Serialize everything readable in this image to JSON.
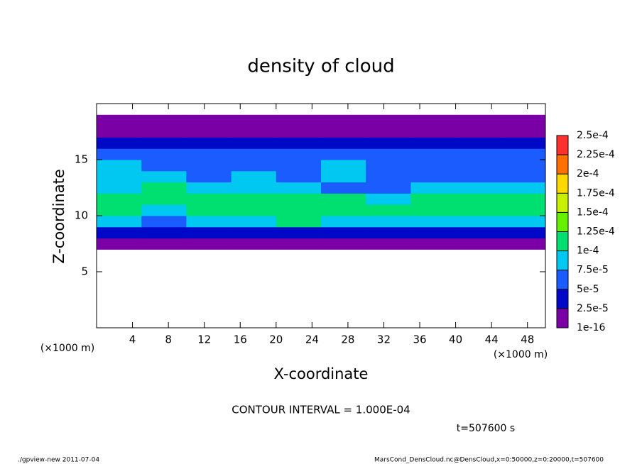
{
  "chart_data": {
    "type": "heatmap",
    "title": "density of cloud",
    "x_label": "X-coordinate",
    "y_label": "Z-coordinate",
    "x_unit": "(×1000 m)",
    "y_unit": "(×1000 m)",
    "annotation": "CONTOUR INTERVAL = 1.000E-04",
    "time_label": "t=507600 s",
    "footer_left": "./gpview-new  2011-07-04",
    "footer_right": "MarsCond_DensCloud.nc@DensCloud,x=0:50000,z=0:20000,t=507600",
    "xlim": [
      0,
      50
    ],
    "ylim": [
      0,
      20
    ],
    "xticks": [
      4,
      8,
      12,
      16,
      20,
      24,
      28,
      32,
      36,
      40,
      44,
      48
    ],
    "yticks": [
      5,
      10,
      15
    ],
    "xbins": [
      0,
      5,
      10,
      15,
      20,
      25,
      30,
      35,
      40,
      45,
      50
    ],
    "ybins": [
      0,
      1,
      2,
      3,
      4,
      5,
      6,
      7,
      8,
      9,
      10,
      11,
      12,
      13,
      14,
      15,
      16,
      17,
      18,
      19,
      20
    ],
    "levels": [
      {
        "value": 1e-16,
        "label": "1e-16"
      },
      {
        "value": 2.5e-05,
        "label": "2.5e-5"
      },
      {
        "value": 5e-05,
        "label": "5e-5"
      },
      {
        "value": 7.5e-05,
        "label": "7.5e-5"
      },
      {
        "value": 0.0001,
        "label": "1e-4"
      },
      {
        "value": 0.000125,
        "label": "1.25e-4"
      },
      {
        "value": 0.00015,
        "label": "1.5e-4"
      },
      {
        "value": 0.000175,
        "label": "1.75e-4"
      },
      {
        "value": 0.0002,
        "label": "2e-4"
      },
      {
        "value": 0.000225,
        "label": "2.25e-4"
      },
      {
        "value": 0.00025,
        "label": "2.5e-4"
      }
    ],
    "colors": [
      "#7a00a6",
      "#0008c8",
      "#1a5cff",
      "#00c8f0",
      "#00e070",
      "#66f000",
      "#c8f000",
      "#ffd800",
      "#ff7000",
      "#ff3030"
    ],
    "values": [
      [
        null,
        null,
        null,
        null,
        null,
        null,
        null,
        null,
        null,
        null
      ],
      [
        null,
        null,
        null,
        null,
        null,
        null,
        null,
        null,
        null,
        null
      ],
      [
        null,
        null,
        null,
        null,
        null,
        null,
        null,
        null,
        null,
        null
      ],
      [
        null,
        null,
        null,
        null,
        null,
        null,
        null,
        null,
        null,
        null
      ],
      [
        null,
        null,
        null,
        null,
        null,
        null,
        null,
        null,
        null,
        null
      ],
      [
        null,
        null,
        null,
        null,
        null,
        null,
        null,
        null,
        null,
        null
      ],
      [
        null,
        null,
        null,
        null,
        null,
        null,
        null,
        null,
        null,
        null
      ],
      [
        1e-16,
        1e-16,
        1e-16,
        1e-16,
        1e-16,
        1e-16,
        1e-16,
        1e-16,
        1e-16,
        1e-16
      ],
      [
        3e-05,
        3e-05,
        3e-05,
        3e-05,
        3e-05,
        3e-05,
        3e-05,
        3e-05,
        3e-05,
        3e-05
      ],
      [
        8.5e-05,
        6e-05,
        8.5e-05,
        8.5e-05,
        0.00011,
        8.5e-05,
        8.5e-05,
        8.5e-05,
        8.5e-05,
        8.5e-05
      ],
      [
        0.00011,
        8.5e-05,
        0.00011,
        0.00011,
        0.00011,
        0.00011,
        0.00011,
        0.00011,
        0.00011,
        0.00011
      ],
      [
        0.00011,
        0.00011,
        0.00011,
        0.00011,
        0.00011,
        0.00011,
        8.5e-05,
        0.00011,
        0.00011,
        0.00011
      ],
      [
        8.5e-05,
        0.00011,
        8.5e-05,
        8.5e-05,
        8.5e-05,
        6e-05,
        6e-05,
        8.5e-05,
        8.5e-05,
        8.5e-05
      ],
      [
        8.5e-05,
        8.5e-05,
        6e-05,
        8.5e-05,
        6e-05,
        8.5e-05,
        6e-05,
        6e-05,
        6e-05,
        6e-05
      ],
      [
        8.5e-05,
        6e-05,
        6e-05,
        6e-05,
        6e-05,
        8.5e-05,
        6e-05,
        6e-05,
        6e-05,
        6e-05
      ],
      [
        6e-05,
        6e-05,
        6e-05,
        6e-05,
        6e-05,
        6e-05,
        6e-05,
        6e-05,
        6e-05,
        6e-05
      ],
      [
        3e-05,
        3e-05,
        3e-05,
        3e-05,
        3e-05,
        3e-05,
        3e-05,
        3e-05,
        3e-05,
        3e-05
      ],
      [
        1e-16,
        1e-16,
        1e-16,
        1e-16,
        1e-16,
        1e-16,
        1e-16,
        1e-16,
        1e-16,
        1e-16
      ],
      [
        1e-16,
        1e-16,
        1e-16,
        1e-16,
        1e-16,
        1e-16,
        1e-16,
        1e-16,
        1e-16,
        1e-16
      ],
      [
        null,
        null,
        null,
        null,
        null,
        null,
        null,
        null,
        null,
        null
      ]
    ]
  }
}
